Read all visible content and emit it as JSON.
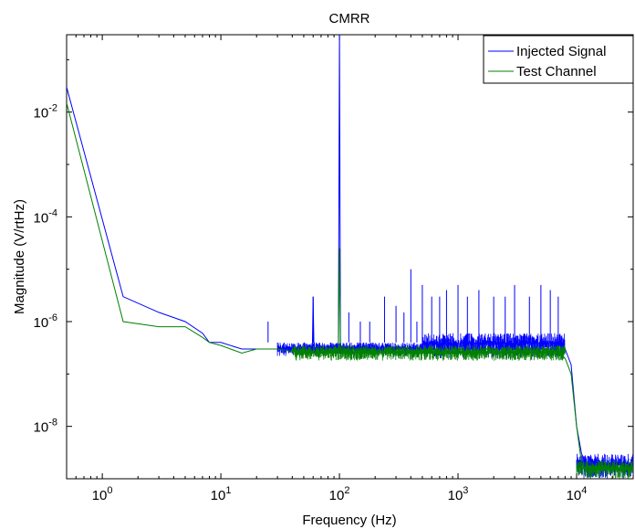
{
  "chart_data": {
    "type": "line",
    "title": "CMRR",
    "xlabel": "Frequency (Hz)",
    "ylabel": "Magnitude (V/rtHz)",
    "xscale": "log",
    "yscale": "log",
    "xlim": [
      0.5,
      30000
    ],
    "ylim": [
      1e-09,
      0.3
    ],
    "x_ticks": [
      1,
      10,
      100,
      1000,
      10000
    ],
    "x_tick_labels": [
      {
        "base": "10",
        "exp": "0"
      },
      {
        "base": "10",
        "exp": "1"
      },
      {
        "base": "10",
        "exp": "2"
      },
      {
        "base": "10",
        "exp": "3"
      },
      {
        "base": "10",
        "exp": "4"
      }
    ],
    "y_ticks": [
      1e-08,
      1e-06,
      0.0001,
      0.01
    ],
    "y_tick_labels": [
      {
        "base": "10",
        "exp": "-8"
      },
      {
        "base": "10",
        "exp": "-6"
      },
      {
        "base": "10",
        "exp": "-4"
      },
      {
        "base": "10",
        "exp": "-2"
      }
    ],
    "grid": false,
    "legend_position": "top-right",
    "series": [
      {
        "name": "Injected Signal",
        "color": "#0000ff",
        "x": [
          0.5,
          1.5,
          3,
          5,
          7,
          8,
          10,
          15,
          20,
          25,
          30,
          40,
          59,
          60,
          61,
          80,
          98,
          100,
          102,
          120,
          200,
          500,
          1000,
          3000,
          5000,
          7000,
          8000,
          9000,
          10000,
          11000,
          12000,
          15000,
          20000,
          30000
        ],
        "y": [
          0.03,
          3e-06,
          1.5e-06,
          1e-06,
          6e-07,
          4e-07,
          4e-07,
          3e-07,
          3e-07,
          3e-07,
          3e-07,
          3e-07,
          2.5e-07,
          3e-06,
          2.5e-07,
          2.5e-07,
          3e-07,
          0.3,
          3e-07,
          3e-07,
          3e-07,
          3e-07,
          3e-07,
          3e-07,
          3e-07,
          3e-07,
          3e-07,
          1.5e-07,
          1e-08,
          3e-09,
          2e-09,
          2e-09,
          2e-09,
          2e-09
        ],
        "spur_x": [
          25,
          60,
          120,
          150,
          180,
          240,
          300,
          350,
          400,
          450,
          500,
          600,
          700,
          800,
          1000,
          1200,
          1500,
          2000,
          2500,
          3000,
          4000,
          5000,
          6000,
          7000
        ],
        "spur_y": [
          1e-06,
          3e-06,
          1.5e-06,
          1e-06,
          1e-06,
          3e-06,
          2e-06,
          1.5e-06,
          1e-05,
          1e-06,
          5e-06,
          3e-06,
          3e-06,
          4e-06,
          5e-06,
          3e-06,
          4e-06,
          3e-06,
          3e-06,
          5e-06,
          3e-06,
          5e-06,
          4e-06,
          3e-06
        ],
        "noise_band": [
          {
            "x_from": 30,
            "x_to": 500,
            "low": 2.2e-07,
            "high": 4e-07
          },
          {
            "x_from": 500,
            "x_to": 8000,
            "low": 2e-07,
            "high": 6e-07
          },
          {
            "x_from": 10000,
            "x_to": 30000,
            "low": 1e-09,
            "high": 3e-09
          }
        ]
      },
      {
        "name": "Test Channel",
        "color": "#008000",
        "x": [
          0.5,
          1.5,
          3,
          5,
          7,
          8,
          10,
          15,
          20,
          30,
          50,
          80,
          98,
          100,
          102,
          200,
          500,
          1000,
          3000,
          5000,
          7000,
          8000,
          9000,
          10000,
          11000,
          12000,
          15000,
          20000,
          30000
        ],
        "y": [
          0.015,
          1e-06,
          8e-07,
          8e-07,
          5e-07,
          4e-07,
          3.5e-07,
          2.5e-07,
          3e-07,
          3e-07,
          2.5e-07,
          2.5e-07,
          2.5e-07,
          2.5e-05,
          2.5e-07,
          2.5e-07,
          2.5e-07,
          2.5e-07,
          2.5e-07,
          2.5e-07,
          2.5e-07,
          2e-07,
          1e-07,
          1e-08,
          2e-09,
          1.5e-09,
          1.5e-09,
          1.5e-09,
          1.5e-09
        ],
        "spur_x": [],
        "spur_y": [],
        "noise_band": [
          {
            "x_from": 40,
            "x_to": 8000,
            "low": 1.8e-07,
            "high": 3.5e-07
          },
          {
            "x_from": 10000,
            "x_to": 30000,
            "low": 1e-09,
            "high": 2.2e-09
          }
        ]
      }
    ]
  }
}
